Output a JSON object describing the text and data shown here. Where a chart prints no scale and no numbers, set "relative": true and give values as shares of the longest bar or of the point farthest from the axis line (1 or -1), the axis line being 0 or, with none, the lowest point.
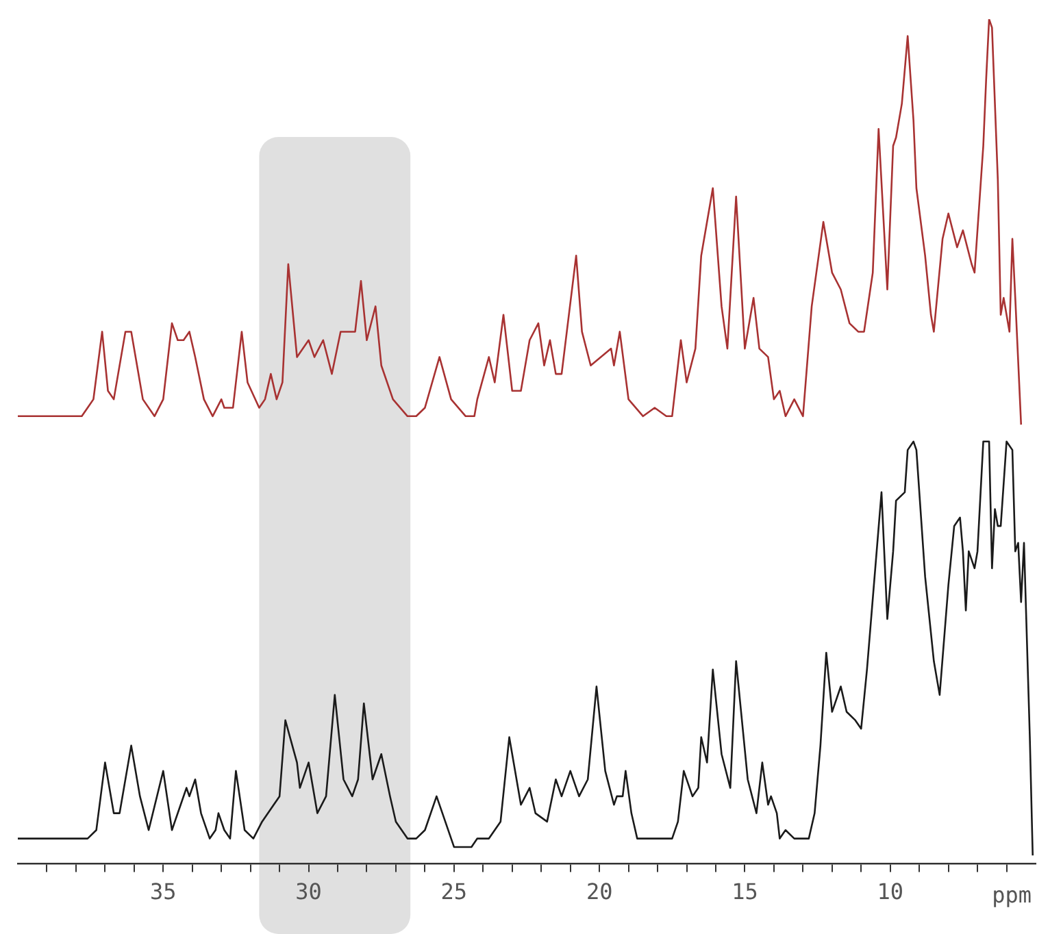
{
  "chart_data": {
    "type": "line",
    "relative": true,
    "tick_labels": "x",
    "grid": false,
    "legend": false,
    "marker": "none",
    "xlim": [
      40,
      5
    ],
    "xlabel": "ppm",
    "xticks": [
      {
        "value": 39,
        "label": null
      },
      {
        "value": 38,
        "label": null
      },
      {
        "value": 37,
        "label": null
      },
      {
        "value": 36,
        "label": null
      },
      35,
      {
        "value": 34,
        "label": null
      },
      {
        "value": 33,
        "label": null
      },
      {
        "value": 32,
        "label": null
      },
      {
        "value": 31,
        "label": null
      },
      30,
      {
        "value": 29,
        "label": null
      },
      {
        "value": 28,
        "label": null
      },
      {
        "value": 27,
        "label": null
      },
      {
        "value": 26,
        "label": null
      },
      25,
      {
        "value": 24,
        "label": null
      },
      {
        "value": 23,
        "label": null
      },
      {
        "value": 22,
        "label": null
      },
      {
        "value": 21,
        "label": null
      },
      20,
      {
        "value": 19,
        "label": null
      },
      {
        "value": 18,
        "label": null
      },
      {
        "value": 17,
        "label": null
      },
      {
        "value": 16,
        "label": null
      },
      15,
      {
        "value": 14,
        "label": null
      },
      {
        "value": 13,
        "label": null
      },
      {
        "value": 12,
        "label": null
      },
      {
        "value": 11,
        "label": null
      },
      10,
      {
        "value": 9,
        "label": null
      },
      {
        "value": 8,
        "label": null
      },
      {
        "value": 7,
        "label": null
      },
      {
        "value": 6,
        "label": null
      }
    ],
    "bands": [
      {
        "axis": "x",
        "from": 31.7,
        "to": 26.5,
        "color": "#e0e0e0"
      }
    ],
    "series": [
      {
        "color": "#a83232",
        "x": [
          40.0,
          37.8,
          37.6,
          37.4,
          37.1,
          36.9,
          36.7,
          36.3,
          36.1,
          35.9,
          35.7,
          35.3,
          35.0,
          34.7,
          34.5,
          34.3,
          34.1,
          33.9,
          33.6,
          33.3,
          33.0,
          32.9,
          32.6,
          32.3,
          32.1,
          31.7,
          31.5,
          31.3,
          31.1,
          30.9,
          30.7,
          30.4,
          30.0,
          29.8,
          29.5,
          29.2,
          28.9,
          28.6,
          28.4,
          28.2,
          28.0,
          27.7,
          27.5,
          27.1,
          26.6,
          26.3,
          26.0,
          25.5,
          25.1,
          24.6,
          24.3,
          24.2,
          23.8,
          23.6,
          23.3,
          23.0,
          22.7,
          22.4,
          22.1,
          21.9,
          21.7,
          21.5,
          21.3,
          20.8,
          20.6,
          20.3,
          19.6,
          19.5,
          19.3,
          19.0,
          18.5,
          18.1,
          17.7,
          17.5,
          17.2,
          17.0,
          16.7,
          16.5,
          16.1,
          15.8,
          15.6,
          15.3,
          15.0,
          14.7,
          14.5,
          14.2,
          14.0,
          13.8,
          13.6,
          13.3,
          13.0,
          12.7,
          12.3,
          12.0,
          11.7,
          11.4,
          11.1,
          10.9,
          10.6,
          10.4,
          10.1,
          9.9,
          9.8,
          9.6,
          9.4,
          9.2,
          9.1,
          8.8,
          8.6,
          8.5,
          8.2,
          8.0,
          7.7,
          7.5,
          7.2,
          7.1,
          6.9,
          6.8,
          6.7,
          6.6,
          6.5,
          6.3,
          6.2,
          6.1,
          5.9,
          5.8,
          5.7,
          5.5
        ],
        "values": [
          0.53,
          0.53,
          0.54,
          0.55,
          0.63,
          0.56,
          0.55,
          0.63,
          0.63,
          0.59,
          0.55,
          0.53,
          0.55,
          0.64,
          0.62,
          0.62,
          0.63,
          0.6,
          0.55,
          0.53,
          0.55,
          0.54,
          0.54,
          0.63,
          0.57,
          0.54,
          0.55,
          0.58,
          0.55,
          0.57,
          0.71,
          0.6,
          0.62,
          0.6,
          0.62,
          0.58,
          0.63,
          0.63,
          0.63,
          0.69,
          0.62,
          0.66,
          0.59,
          0.55,
          0.53,
          0.53,
          0.54,
          0.6,
          0.55,
          0.53,
          0.53,
          0.55,
          0.6,
          0.57,
          0.65,
          0.56,
          0.56,
          0.62,
          0.64,
          0.59,
          0.62,
          0.58,
          0.58,
          0.72,
          0.63,
          0.59,
          0.61,
          0.59,
          0.63,
          0.55,
          0.53,
          0.54,
          0.53,
          0.53,
          0.62,
          0.57,
          0.61,
          0.72,
          0.8,
          0.66,
          0.61,
          0.79,
          0.61,
          0.67,
          0.61,
          0.6,
          0.55,
          0.56,
          0.53,
          0.55,
          0.53,
          0.66,
          0.76,
          0.7,
          0.68,
          0.64,
          0.63,
          0.63,
          0.7,
          0.87,
          0.68,
          0.85,
          0.86,
          0.9,
          0.98,
          0.88,
          0.8,
          0.72,
          0.65,
          0.63,
          0.74,
          0.77,
          0.73,
          0.75,
          0.71,
          0.7,
          0.8,
          0.85,
          0.93,
          1,
          0.99,
          0.81,
          0.65,
          0.67,
          0.63,
          0.74,
          0.67,
          0.52
        ]
      },
      {
        "color": "#1a1a1a",
        "x": [
          40.0,
          37.8,
          37.6,
          37.3,
          37.0,
          36.7,
          36.5,
          36.1,
          35.8,
          35.5,
          35.0,
          34.7,
          34.4,
          34.2,
          34.1,
          33.9,
          33.7,
          33.4,
          33.2,
          33.1,
          32.9,
          32.7,
          32.5,
          32.2,
          31.9,
          31.6,
          31.2,
          31.0,
          30.8,
          30.4,
          30.3,
          30.0,
          29.7,
          29.4,
          29.1,
          28.8,
          28.5,
          28.3,
          28.1,
          27.8,
          27.5,
          27.2,
          27.0,
          26.6,
          26.3,
          26.0,
          25.6,
          25.3,
          25.0,
          24.4,
          24.2,
          23.8,
          23.4,
          23.1,
          22.7,
          22.4,
          22.2,
          21.8,
          21.5,
          21.3,
          21.0,
          20.7,
          20.4,
          20.1,
          19.8,
          19.5,
          19.4,
          19.2,
          19.1,
          18.9,
          18.7,
          18.0,
          17.5,
          17.3,
          17.1,
          16.8,
          16.6,
          16.5,
          16.3,
          16.1,
          15.8,
          15.5,
          15.3,
          14.9,
          14.6,
          14.4,
          14.2,
          14.1,
          13.9,
          13.8,
          13.6,
          13.3,
          12.8,
          12.6,
          12.4,
          12.2,
          12.0,
          11.7,
          11.5,
          11.2,
          11.0,
          10.8,
          10.3,
          10.1,
          9.9,
          9.8,
          9.5,
          9.4,
          9.2,
          9.1,
          8.8,
          8.5,
          8.3,
          8.0,
          7.8,
          7.6,
          7.5,
          7.4,
          7.3,
          7.1,
          7.0,
          6.8,
          6.6,
          6.5,
          6.4,
          6.3,
          6.2,
          6.0,
          5.8,
          5.7,
          5.6,
          5.5,
          5.4,
          5.2,
          5.1
        ],
        "values": [
          0.03,
          0.03,
          0.03,
          0.04,
          0.12,
          0.06,
          0.06,
          0.14,
          0.08,
          0.04,
          0.11,
          0.04,
          0.07,
          0.09,
          0.08,
          0.1,
          0.06,
          0.03,
          0.04,
          0.06,
          0.04,
          0.03,
          0.11,
          0.04,
          0.03,
          0.05,
          0.07,
          0.08,
          0.17,
          0.12,
          0.09,
          0.12,
          0.06,
          0.08,
          0.2,
          0.1,
          0.08,
          0.1,
          0.19,
          0.1,
          0.13,
          0.08,
          0.05,
          0.03,
          0.03,
          0.04,
          0.08,
          0.05,
          0.02,
          0.02,
          0.03,
          0.03,
          0.05,
          0.15,
          0.07,
          0.09,
          0.06,
          0.05,
          0.1,
          0.08,
          0.11,
          0.08,
          0.1,
          0.21,
          0.11,
          0.07,
          0.08,
          0.08,
          0.11,
          0.06,
          0.03,
          0.03,
          0.03,
          0.05,
          0.11,
          0.08,
          0.09,
          0.15,
          0.12,
          0.23,
          0.13,
          0.09,
          0.24,
          0.1,
          0.06,
          0.12,
          0.07,
          0.08,
          0.06,
          0.03,
          0.04,
          0.03,
          0.03,
          0.06,
          0.14,
          0.25,
          0.18,
          0.21,
          0.18,
          0.17,
          0.16,
          0.23,
          0.44,
          0.29,
          0.37,
          0.43,
          0.44,
          0.49,
          0.5,
          0.49,
          0.34,
          0.24,
          0.2,
          0.33,
          0.4,
          0.41,
          0.37,
          0.3,
          0.37,
          0.35,
          0.37,
          0.5,
          0.5,
          0.35,
          0.42,
          0.4,
          0.4,
          0.5,
          0.49,
          0.37,
          0.38,
          0.31,
          0.38,
          0.15,
          0.01
        ]
      }
    ]
  }
}
